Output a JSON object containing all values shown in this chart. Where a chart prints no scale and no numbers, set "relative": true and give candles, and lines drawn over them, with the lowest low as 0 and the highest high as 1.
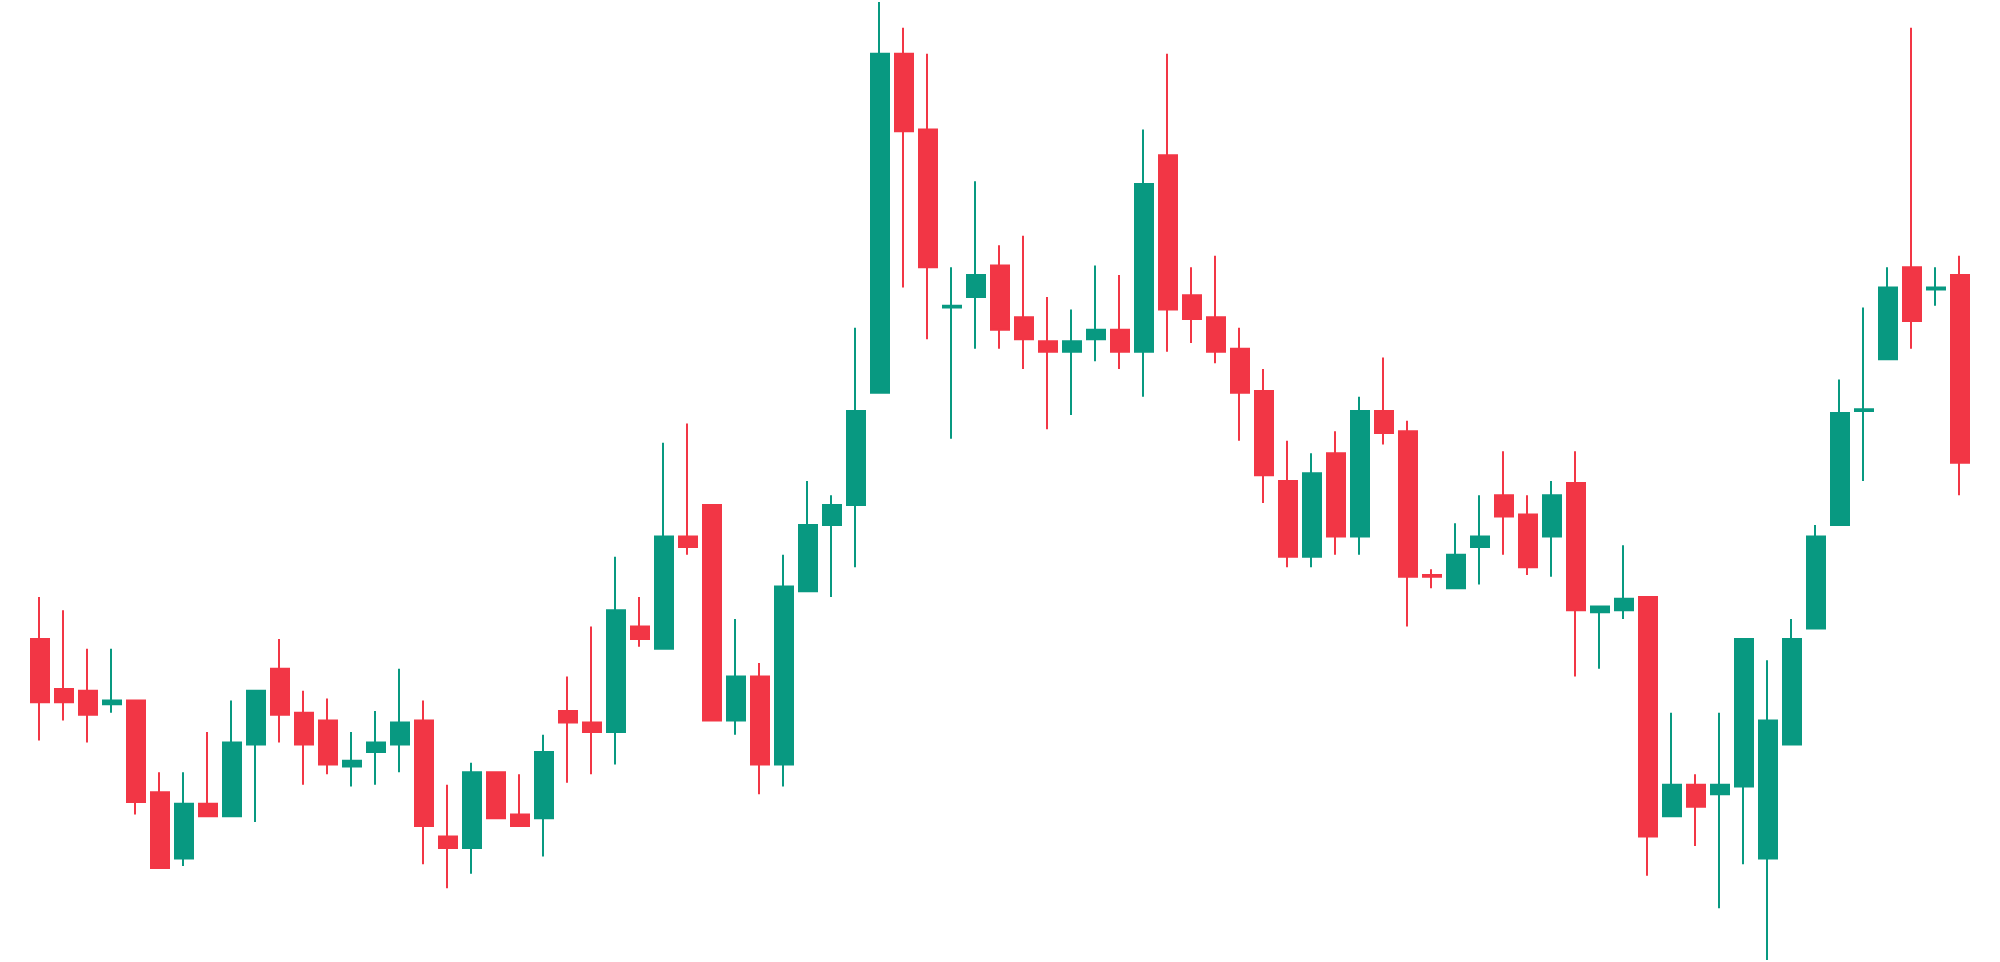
{
  "chart_data": {
    "type": "candlestick",
    "relative": true,
    "categories": [
      null,
      null,
      null,
      null,
      null,
      null,
      null,
      null,
      null,
      null,
      null,
      null,
      null,
      null,
      null,
      null,
      null,
      null,
      null,
      null,
      null,
      null,
      null,
      null,
      null,
      null,
      null,
      null,
      null,
      null,
      null,
      null,
      null,
      null,
      null,
      null,
      null,
      null,
      null,
      null,
      null,
      null,
      null,
      null,
      null,
      null,
      null,
      null,
      null,
      null,
      null,
      null,
      null,
      null,
      null,
      null,
      null,
      null,
      null,
      null,
      null,
      null,
      null,
      null,
      null,
      null,
      null,
      null,
      null,
      null,
      null,
      null,
      null,
      null,
      null,
      null,
      null,
      null,
      null,
      null,
      null
    ],
    "ohlc": [
      [
        0.335,
        0.379,
        0.229,
        0.269
      ],
      [
        0.283,
        0.365,
        0.25,
        0.269
      ],
      [
        0.281,
        0.325,
        0.227,
        0.256
      ],
      [
        0.267,
        0.325,
        0.258,
        0.271
      ],
      [
        0.271,
        0.271,
        0.152,
        0.165
      ],
      [
        0.175,
        0.196,
        0.096,
        0.096
      ],
      [
        0.106,
        0.196,
        0.098,
        0.163
      ],
      [
        0.163,
        0.238,
        0.15,
        0.15
      ],
      [
        0.15,
        0.271,
        0.15,
        0.227
      ],
      [
        0.225,
        0.281,
        0.144,
        0.281
      ],
      [
        0.304,
        0.335,
        0.227,
        0.256
      ],
      [
        0.258,
        0.281,
        0.183,
        0.225
      ],
      [
        0.25,
        0.273,
        0.194,
        0.204
      ],
      [
        0.202,
        0.238,
        0.181,
        0.208
      ],
      [
        0.217,
        0.26,
        0.183,
        0.227
      ],
      [
        0.225,
        0.304,
        0.196,
        0.248
      ],
      [
        0.25,
        0.271,
        0.1,
        0.14
      ],
      [
        0.129,
        0.183,
        0.075,
        0.117
      ],
      [
        0.117,
        0.206,
        0.09,
        0.196
      ],
      [
        0.196,
        0.196,
        0.148,
        0.148
      ],
      [
        0.152,
        0.194,
        0.14,
        0.14
      ],
      [
        0.148,
        0.235,
        0.108,
        0.217
      ],
      [
        0.26,
        0.296,
        0.185,
        0.248
      ],
      [
        0.248,
        0.348,
        0.194,
        0.238
      ],
      [
        0.238,
        0.421,
        0.204,
        0.365
      ],
      [
        0.348,
        0.379,
        0.327,
        0.335
      ],
      [
        0.325,
        0.54,
        0.325,
        0.442
      ],
      [
        0.442,
        0.56,
        0.423,
        0.431
      ],
      [
        0.475,
        0.475,
        0.25,
        0.25
      ],
      [
        0.25,
        0.356,
        0.235,
        0.296
      ],
      [
        0.296,
        0.31,
        0.173,
        0.204
      ],
      [
        0.204,
        0.423,
        0.181,
        0.39
      ],
      [
        0.385,
        0.5,
        0.385,
        0.454
      ],
      [
        0.454,
        0.485,
        0.379,
        0.475
      ],
      [
        0.475,
        0.66,
        0.41,
        0.573
      ],
      [
        0.592,
        1,
        0.592,
        0.946
      ],
      [
        0.946,
        0.973,
        0.702,
        0.865
      ],
      [
        0.867,
        0.946,
        0.648,
        0.723
      ],
      [
        0.681,
        0.723,
        0.544,
        0.683
      ],
      [
        0.692,
        0.813,
        0.638,
        0.715
      ],
      [
        0.725,
        0.746,
        0.638,
        0.658
      ],
      [
        0.671,
        0.756,
        0.617,
        0.648
      ],
      [
        0.646,
        0.692,
        0.554,
        0.635
      ],
      [
        0.635,
        0.679,
        0.569,
        0.646
      ],
      [
        0.648,
        0.725,
        0.625,
        0.658
      ],
      [
        0.658,
        0.715,
        0.617,
        0.635
      ],
      [
        0.635,
        0.867,
        0.588,
        0.81
      ],
      [
        0.84,
        0.946,
        0.635,
        0.679
      ],
      [
        0.694,
        0.723,
        0.644,
        0.669
      ],
      [
        0.671,
        0.735,
        0.623,
        0.635
      ],
      [
        0.638,
        0.66,
        0.542,
        0.592
      ],
      [
        0.594,
        0.617,
        0.477,
        0.506
      ],
      [
        0.5,
        0.542,
        0.41,
        0.421
      ],
      [
        0.421,
        0.529,
        0.41,
        0.508
      ],
      [
        0.529,
        0.552,
        0.423,
        0.442
      ],
      [
        0.442,
        0.588,
        0.423,
        0.573
      ],
      [
        0.573,
        0.629,
        0.538,
        0.55
      ],
      [
        0.552,
        0.563,
        0.348,
        0.4
      ],
      [
        0.402,
        0.408,
        0.388,
        0.4
      ],
      [
        0.388,
        0.456,
        0.388,
        0.423
      ],
      [
        0.431,
        0.485,
        0.392,
        0.442
      ],
      [
        0.485,
        0.531,
        0.423,
        0.463
      ],
      [
        0.465,
        0.485,
        0.402,
        0.41
      ],
      [
        0.442,
        0.5,
        0.4,
        0.485
      ],
      [
        0.498,
        0.531,
        0.296,
        0.365
      ],
      [
        0.363,
        0.369,
        0.304,
        0.369
      ],
      [
        0.365,
        0.433,
        0.356,
        0.377
      ],
      [
        0.379,
        0.379,
        0.088,
        0.129
      ],
      [
        0.15,
        0.258,
        0.15,
        0.183
      ],
      [
        0.183,
        0.194,
        0.119,
        0.16
      ],
      [
        0.173,
        0.258,
        0.054,
        0.183
      ],
      [
        0.181,
        0.335,
        0.1,
        0.335
      ],
      [
        0.106,
        0.313,
        0,
        0.25
      ],
      [
        0.225,
        0.356,
        0.225,
        0.335
      ],
      [
        0.346,
        0.454,
        0.346,
        0.442
      ],
      [
        0.454,
        0.606,
        0.454,
        0.571
      ],
      [
        0.573,
        0.681,
        0.5,
        0.575
      ],
      [
        0.627,
        0.723,
        0.627,
        0.702
      ],
      [
        0.723,
        0.973,
        0.638,
        0.667
      ],
      [
        0.7,
        0.723,
        0.683,
        0.702
      ],
      [
        0.715,
        0.735,
        0.485,
        0.519
      ]
    ],
    "colors": [
      "#f23645",
      "#f23645",
      "#f23645",
      "#089981",
      "#f23645",
      "#f23645",
      "#089981",
      "#f23645",
      "#089981",
      "#089981",
      "#f23645",
      "#f23645",
      "#f23645",
      "#089981",
      "#089981",
      "#089981",
      "#f23645",
      "#f23645",
      "#089981",
      "#f23645",
      "#f23645",
      "#089981",
      "#f23645",
      "#f23645",
      "#089981",
      "#f23645",
      "#089981",
      "#f23645",
      "#f23645",
      "#089981",
      "#f23645",
      "#089981",
      "#089981",
      "#089981",
      "#089981",
      "#089981",
      "#f23645",
      "#f23645",
      "#089981",
      "#089981",
      "#f23645",
      "#f23645",
      "#f23645",
      "#089981",
      "#089981",
      "#f23645",
      "#089981",
      "#f23645",
      "#f23645",
      "#f23645",
      "#f23645",
      "#f23645",
      "#f23645",
      "#089981",
      "#f23645",
      "#089981",
      "#f23645",
      "#f23645",
      "#f23645",
      "#089981",
      "#089981",
      "#f23645",
      "#f23645",
      "#089981",
      "#f23645",
      "#089981",
      "#089981",
      "#f23645",
      "#089981",
      "#f23645",
      "#089981",
      "#089981",
      "#089981",
      "#089981",
      "#089981",
      "#089981",
      "#089981",
      "#089981",
      "#f23645",
      "#089981",
      "#f23645"
    ]
  }
}
